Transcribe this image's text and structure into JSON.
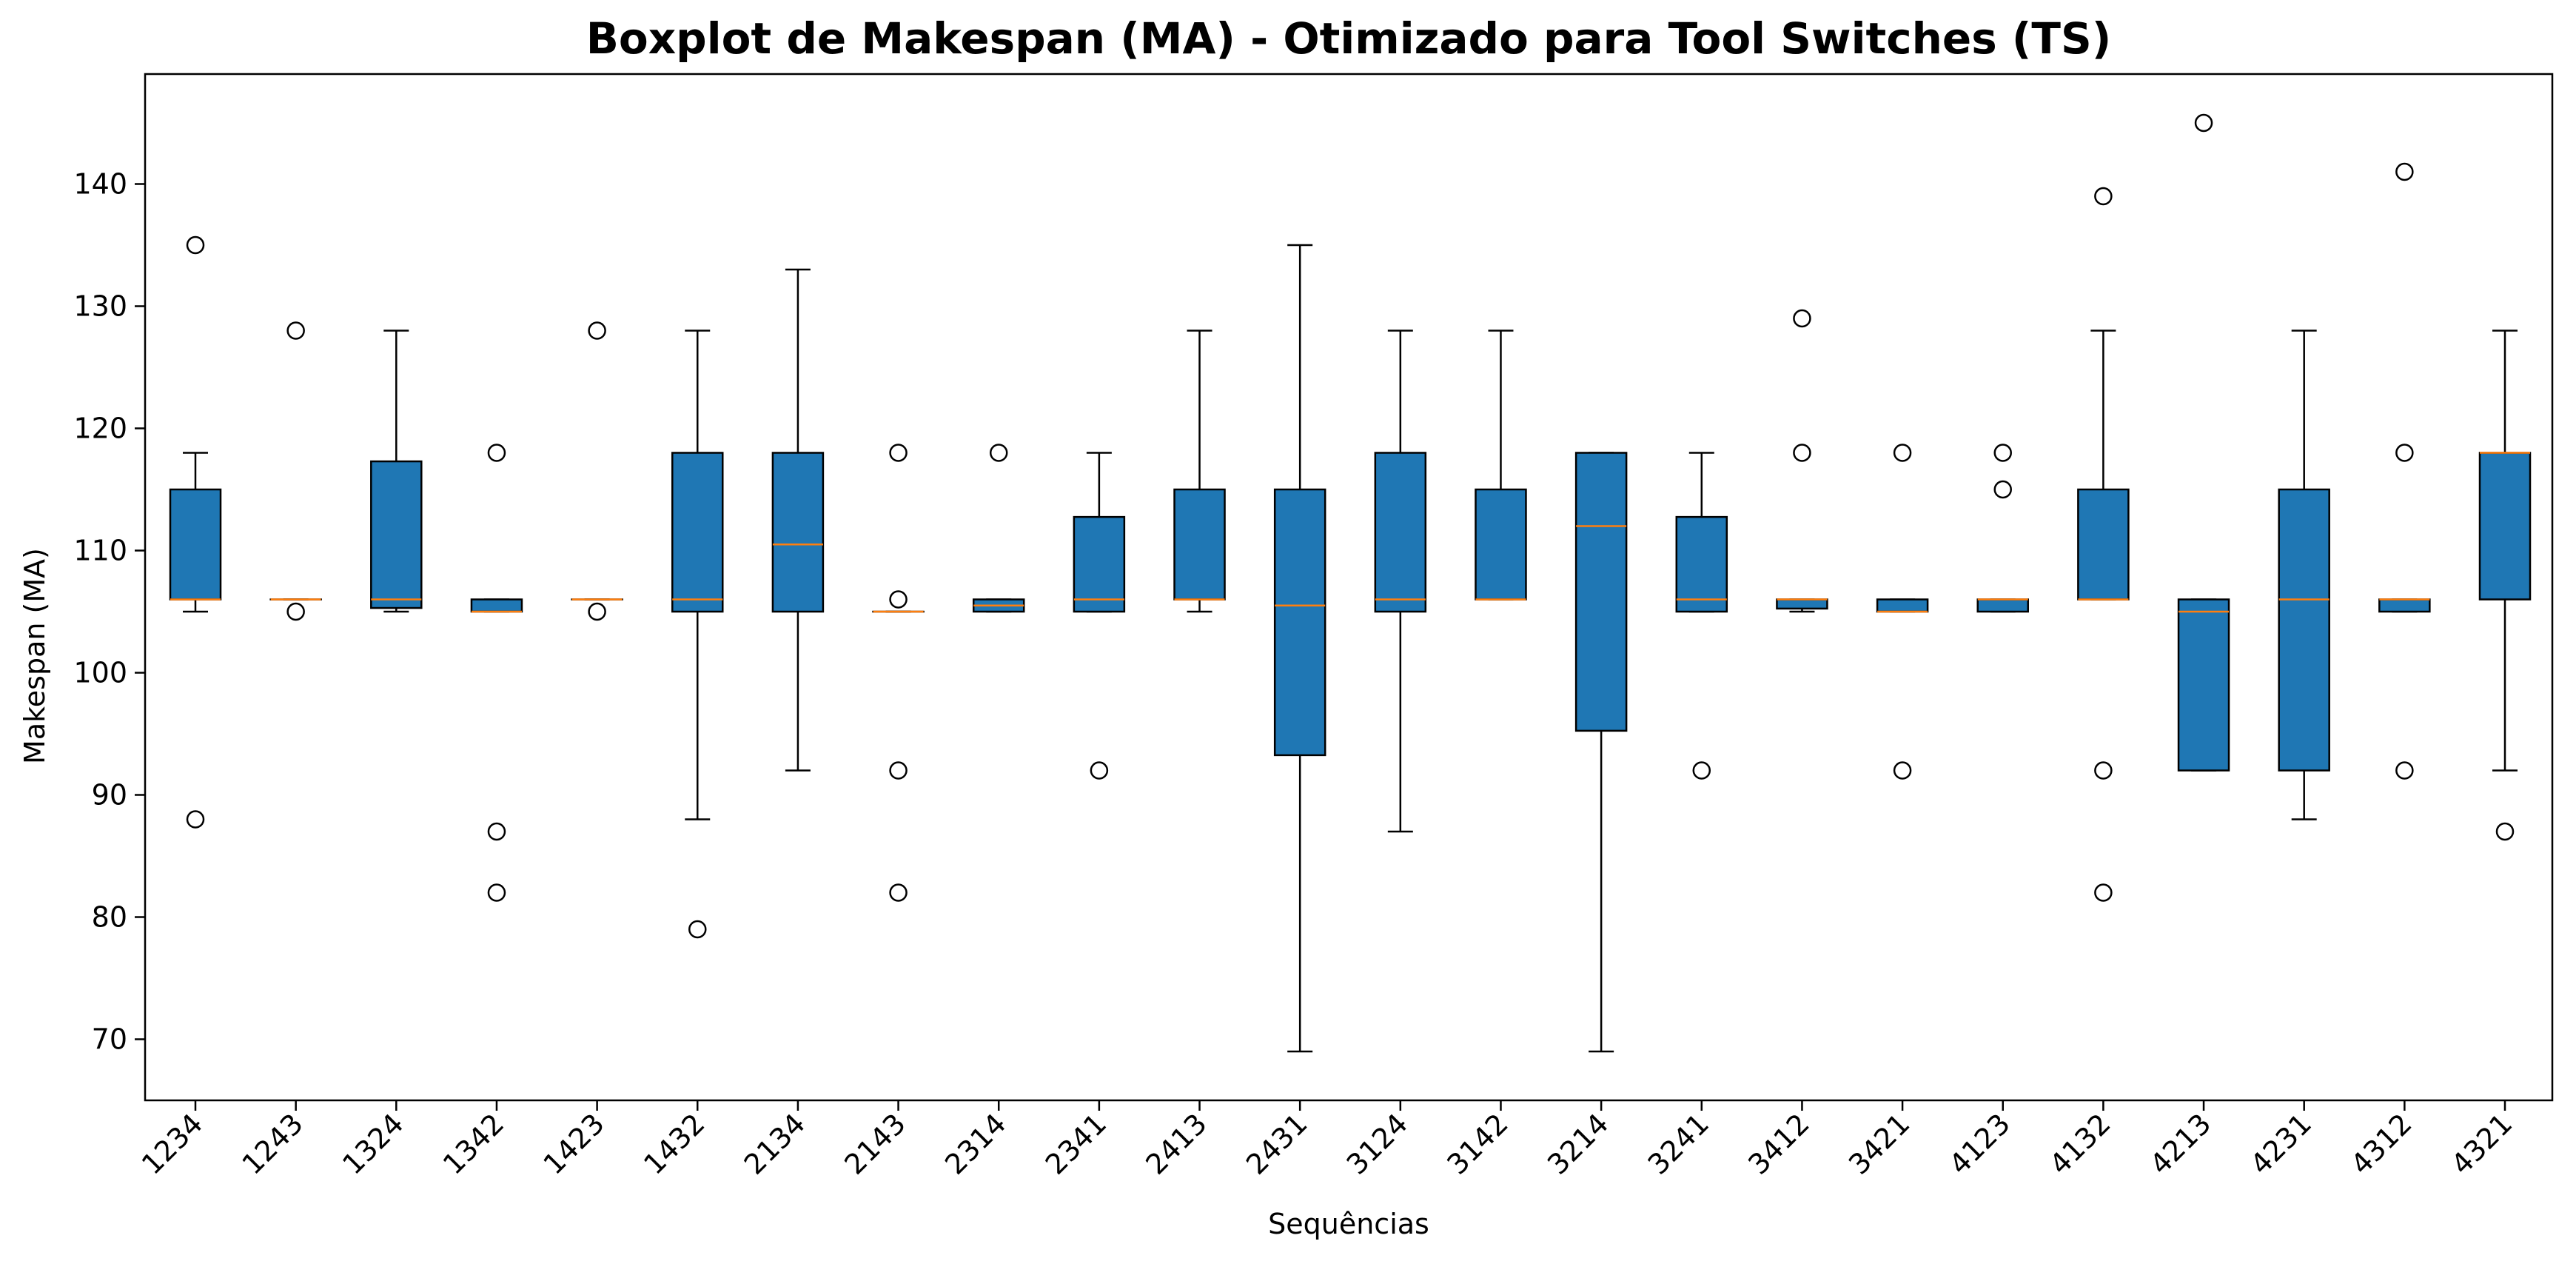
{
  "chart_data": {
    "type": "boxplot",
    "title": "Boxplot de Makespan (MA) - Otimizado para Tool Switches (TS)",
    "xlabel": "Sequências",
    "ylabel": "Makespan (MA)",
    "ylim": [
      65,
      149
    ],
    "yticks": [
      70,
      80,
      90,
      100,
      110,
      120,
      130,
      140
    ],
    "grid": false,
    "colors": {
      "box_fill": "#1f77b4",
      "median": "#ff7f0e",
      "edge": "#000000"
    },
    "categories": [
      "1234",
      "1243",
      "1324",
      "1342",
      "1423",
      "1432",
      "2134",
      "2143",
      "2314",
      "2341",
      "2413",
      "2431",
      "3124",
      "3142",
      "3214",
      "3241",
      "3412",
      "3421",
      "4123",
      "4132",
      "4213",
      "4231",
      "4312",
      "4321"
    ],
    "boxes": [
      {
        "label": "1234",
        "whislo": 105,
        "q1": 106,
        "median": 106,
        "q3": 115,
        "whishi": 118,
        "fliers": [
          135,
          88
        ]
      },
      {
        "label": "1243",
        "whislo": 106,
        "q1": 106,
        "median": 106,
        "q3": 106,
        "whishi": 106,
        "fliers": [
          128,
          105
        ]
      },
      {
        "label": "1324",
        "whislo": 105,
        "q1": 105.3,
        "median": 106,
        "q3": 117.3,
        "whishi": 128,
        "fliers": []
      },
      {
        "label": "1342",
        "whislo": 105,
        "q1": 105,
        "median": 105,
        "q3": 106,
        "whishi": 106,
        "fliers": [
          118,
          87,
          82
        ]
      },
      {
        "label": "1423",
        "whislo": 106,
        "q1": 106,
        "median": 106,
        "q3": 106,
        "whishi": 106,
        "fliers": [
          128,
          105
        ]
      },
      {
        "label": "1432",
        "whislo": 88,
        "q1": 105,
        "median": 106,
        "q3": 118,
        "whishi": 128,
        "fliers": [
          79
        ]
      },
      {
        "label": "2134",
        "whislo": 92,
        "q1": 105,
        "median": 110.5,
        "q3": 118,
        "whishi": 133,
        "fliers": []
      },
      {
        "label": "2143",
        "whislo": 105,
        "q1": 105,
        "median": 105,
        "q3": 105,
        "whishi": 105,
        "fliers": [
          118,
          106,
          92,
          82
        ]
      },
      {
        "label": "2314",
        "whislo": 105,
        "q1": 105,
        "median": 105.5,
        "q3": 106,
        "whishi": 106,
        "fliers": [
          118
        ]
      },
      {
        "label": "2341",
        "whislo": 105,
        "q1": 105,
        "median": 106,
        "q3": 112.75,
        "whishi": 118,
        "fliers": [
          92
        ]
      },
      {
        "label": "2413",
        "whislo": 105,
        "q1": 106,
        "median": 106,
        "q3": 115,
        "whishi": 128,
        "fliers": []
      },
      {
        "label": "2431",
        "whislo": 69,
        "q1": 93.25,
        "median": 105.5,
        "q3": 115,
        "whishi": 135,
        "fliers": []
      },
      {
        "label": "3124",
        "whislo": 87,
        "q1": 105,
        "median": 106,
        "q3": 118,
        "whishi": 128,
        "fliers": []
      },
      {
        "label": "3142",
        "whislo": 106,
        "q1": 106,
        "median": 106,
        "q3": 115,
        "whishi": 128,
        "fliers": []
      },
      {
        "label": "3214",
        "whislo": 69,
        "q1": 95.25,
        "median": 112,
        "q3": 118,
        "whishi": 118,
        "fliers": []
      },
      {
        "label": "3241",
        "whislo": 105,
        "q1": 105,
        "median": 106,
        "q3": 112.75,
        "whishi": 118,
        "fliers": [
          92
        ]
      },
      {
        "label": "3412",
        "whislo": 105,
        "q1": 105.25,
        "median": 106,
        "q3": 106,
        "whishi": 106,
        "fliers": [
          129,
          118
        ]
      },
      {
        "label": "3421",
        "whislo": 105,
        "q1": 105,
        "median": 105,
        "q3": 106,
        "whishi": 106,
        "fliers": [
          118,
          92
        ]
      },
      {
        "label": "4123",
        "whislo": 105,
        "q1": 105,
        "median": 106,
        "q3": 106,
        "whishi": 106,
        "fliers": [
          118,
          115
        ]
      },
      {
        "label": "4132",
        "whislo": 106,
        "q1": 106,
        "median": 106,
        "q3": 115,
        "whishi": 128,
        "fliers": [
          139,
          92,
          82
        ]
      },
      {
        "label": "4213",
        "whislo": 92,
        "q1": 92,
        "median": 105,
        "q3": 106,
        "whishi": 106,
        "fliers": [
          145
        ]
      },
      {
        "label": "4231",
        "whislo": 88,
        "q1": 92,
        "median": 106,
        "q3": 115,
        "whishi": 128,
        "fliers": []
      },
      {
        "label": "4312",
        "whislo": 105,
        "q1": 105,
        "median": 106,
        "q3": 106,
        "whishi": 106,
        "fliers": [
          141,
          118,
          92
        ]
      },
      {
        "label": "4321",
        "whislo": 92,
        "q1": 106,
        "median": 118,
        "q3": 118,
        "whishi": 128,
        "fliers": [
          87
        ]
      }
    ]
  }
}
